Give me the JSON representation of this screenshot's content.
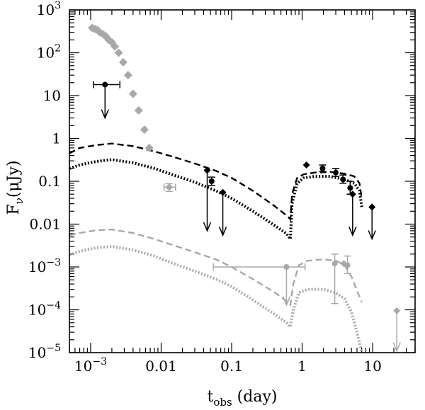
{
  "chart_data": {
    "type": "scatter",
    "title": "",
    "xlabel": {
      "main": "t",
      "sub": "obs",
      "rest": " (day)"
    },
    "ylabel": {
      "main": "F",
      "sub": "ν",
      "rest": "(μJy)"
    },
    "xscale": "log",
    "yscale": "log",
    "xlim": [
      0.0005,
      40
    ],
    "ylim": [
      1e-05,
      1000
    ],
    "xticks": [
      {
        "value": 0.001,
        "label": "10",
        "exp": "−3"
      },
      {
        "value": 0.01,
        "label": "0.01",
        "exp": ""
      },
      {
        "value": 0.1,
        "label": "0.1",
        "exp": ""
      },
      {
        "value": 1,
        "label": "1",
        "exp": ""
      },
      {
        "value": 10,
        "label": "10",
        "exp": ""
      }
    ],
    "yticks": [
      {
        "value": 1e-05,
        "label": "10",
        "exp": "−5"
      },
      {
        "value": 0.0001,
        "label": "10",
        "exp": "−4"
      },
      {
        "value": 0.001,
        "label": "10",
        "exp": "−3"
      },
      {
        "value": 0.01,
        "label": "0.01",
        "exp": ""
      },
      {
        "value": 0.1,
        "label": "0.1",
        "exp": ""
      },
      {
        "value": 1,
        "label": "1",
        "exp": ""
      },
      {
        "value": 10,
        "label": "10",
        "exp": ""
      },
      {
        "value": 100,
        "label": "10",
        "exp": "2"
      },
      {
        "value": 1000,
        "label": "10",
        "exp": "3"
      }
    ],
    "colors": {
      "black": "#000000",
      "gray": "#a8a8a8"
    },
    "series": [
      {
        "name": "black-dashed-model",
        "kind": "line",
        "color": "#000000",
        "dash": "dashed",
        "points": [
          [
            0.0005,
            0.45
          ],
          [
            0.0007,
            0.6
          ],
          [
            0.0012,
            0.7
          ],
          [
            0.002,
            0.76
          ],
          [
            0.004,
            0.66
          ],
          [
            0.008,
            0.5
          ],
          [
            0.015,
            0.37
          ],
          [
            0.03,
            0.26
          ],
          [
            0.06,
            0.175
          ],
          [
            0.1,
            0.12
          ],
          [
            0.2,
            0.06
          ],
          [
            0.4,
            0.027
          ],
          [
            0.6,
            0.016
          ],
          [
            0.68,
            0.013
          ],
          [
            0.72,
            0.05
          ],
          [
            0.85,
            0.12
          ],
          [
            1.05,
            0.145
          ],
          [
            1.5,
            0.16
          ],
          [
            2.5,
            0.165
          ],
          [
            4,
            0.15
          ],
          [
            5.5,
            0.13
          ],
          [
            6.5,
            0.09
          ],
          [
            7,
            0.04
          ]
        ]
      },
      {
        "name": "black-dotted-model",
        "kind": "line",
        "color": "#000000",
        "dash": "dotted",
        "points": [
          [
            0.0005,
            0.2
          ],
          [
            0.0007,
            0.24
          ],
          [
            0.0012,
            0.29
          ],
          [
            0.002,
            0.32
          ],
          [
            0.004,
            0.27
          ],
          [
            0.008,
            0.2
          ],
          [
            0.015,
            0.14
          ],
          [
            0.03,
            0.095
          ],
          [
            0.06,
            0.06
          ],
          [
            0.1,
            0.04
          ],
          [
            0.2,
            0.02
          ],
          [
            0.4,
            0.0095
          ],
          [
            0.6,
            0.006
          ],
          [
            0.68,
            0.0045
          ],
          [
            0.72,
            0.03
          ],
          [
            0.85,
            0.09
          ],
          [
            1.05,
            0.12
          ],
          [
            1.5,
            0.13
          ],
          [
            2.5,
            0.13
          ],
          [
            4,
            0.11
          ],
          [
            5.5,
            0.09
          ],
          [
            6.5,
            0.06
          ],
          [
            7,
            0.025
          ]
        ]
      },
      {
        "name": "gray-dashed-model",
        "kind": "line",
        "color": "#a8a8a8",
        "dash": "dashed",
        "points": [
          [
            0.0005,
            0.0055
          ],
          [
            0.0007,
            0.0062
          ],
          [
            0.0012,
            0.0072
          ],
          [
            0.002,
            0.0075
          ],
          [
            0.004,
            0.0062
          ],
          [
            0.008,
            0.0045
          ],
          [
            0.015,
            0.0032
          ],
          [
            0.03,
            0.0022
          ],
          [
            0.06,
            0.0015
          ],
          [
            0.1,
            0.001
          ],
          [
            0.2,
            0.00052
          ],
          [
            0.4,
            0.00026
          ],
          [
            0.6,
            0.00016
          ],
          [
            0.68,
            0.00013
          ],
          [
            0.75,
            0.0004
          ],
          [
            0.9,
            0.0011
          ],
          [
            1.2,
            0.0014
          ],
          [
            2,
            0.0015
          ],
          [
            3,
            0.0014
          ],
          [
            4,
            0.0011
          ],
          [
            5,
            0.0006
          ],
          [
            6,
            0.00028
          ],
          [
            7,
            0.00015
          ]
        ]
      },
      {
        "name": "gray-dotted-model",
        "kind": "line",
        "color": "#a8a8a8",
        "dash": "dotted",
        "points": [
          [
            0.0005,
            0.0019
          ],
          [
            0.0007,
            0.0023
          ],
          [
            0.0012,
            0.0028
          ],
          [
            0.002,
            0.003
          ],
          [
            0.004,
            0.0025
          ],
          [
            0.008,
            0.0018
          ],
          [
            0.015,
            0.0012
          ],
          [
            0.03,
            0.0008
          ],
          [
            0.06,
            0.00052
          ],
          [
            0.1,
            0.00035
          ],
          [
            0.2,
            0.00017
          ],
          [
            0.4,
            8e-05
          ],
          [
            0.6,
            5e-05
          ],
          [
            0.68,
            4e-05
          ],
          [
            0.75,
            0.0001
          ],
          [
            0.9,
            0.00025
          ],
          [
            1.2,
            0.0003
          ],
          [
            2,
            0.0003
          ],
          [
            3,
            0.00025
          ],
          [
            4,
            0.00018
          ],
          [
            5,
            9e-05
          ],
          [
            6,
            3e-05
          ],
          [
            7,
            1e-05
          ]
        ]
      },
      {
        "name": "gray-diamonds-early",
        "kind": "points",
        "color": "#a8a8a8",
        "marker": "diamond",
        "size": 6,
        "points": [
          [
            0.00105,
            380
          ],
          [
            0.00115,
            360
          ],
          [
            0.00125,
            340
          ],
          [
            0.00135,
            300
          ],
          [
            0.0015,
            270
          ],
          [
            0.00165,
            240
          ],
          [
            0.0018,
            200
          ],
          [
            0.002,
            175
          ],
          [
            0.0022,
            140
          ],
          [
            0.0025,
            100
          ],
          [
            0.0029,
            60
          ],
          [
            0.0034,
            30
          ],
          [
            0.004,
            11
          ],
          [
            0.0048,
            4.5
          ],
          [
            0.0058,
            1.6
          ],
          [
            0.0068,
            0.6
          ]
        ]
      },
      {
        "name": "black-detections",
        "kind": "points",
        "color": "#000000",
        "marker": "circle",
        "size": 4,
        "points": [
          {
            "x": 0.0016,
            "y": 18,
            "xerr": [
              0.0011,
              0.0026
            ]
          },
          {
            "x": 0.052,
            "y": 0.1,
            "yerr": [
              0.08,
              0.125
            ]
          },
          {
            "x": 1.95,
            "y": 0.2,
            "yerr": [
              0.17,
              0.24
            ]
          },
          {
            "x": 3.0,
            "y": 0.16,
            "yerr": [
              0.13,
              0.2
            ]
          },
          {
            "x": 3.8,
            "y": 0.11,
            "yerr": [
              0.09,
              0.14
            ]
          },
          {
            "x": 4.8,
            "y": 0.07,
            "yerr": [
              0.05,
              0.1
            ]
          }
        ]
      },
      {
        "name": "black-diamonds",
        "kind": "points",
        "color": "#000000",
        "marker": "diamond",
        "size": 5,
        "points": [
          [
            0.045,
            0.18
          ],
          [
            0.075,
            0.055
          ],
          [
            1.15,
            0.24
          ],
          [
            5.2,
            0.05
          ],
          [
            9.8,
            0.025
          ]
        ]
      },
      {
        "name": "black-upper-limits",
        "kind": "arrows",
        "color": "#000000",
        "points": [
          [
            0.0016,
            18,
            3.0
          ],
          [
            0.045,
            0.18,
            0.007
          ],
          [
            0.075,
            0.055,
            0.0055
          ],
          [
            5.2,
            0.05,
            0.0055
          ],
          [
            9.8,
            0.025,
            0.0045
          ]
        ]
      },
      {
        "name": "gray-detections",
        "kind": "points",
        "color": "#a8a8a8",
        "marker": "circle",
        "size": 4,
        "points": [
          {
            "x": 0.013,
            "y": 0.073,
            "xerr": [
              0.011,
              0.016
            ],
            "yerr": [
              0.058,
              0.088
            ]
          },
          {
            "x": 0.6,
            "y": 0.001,
            "xerr": [
              0.055,
              1.1
            ]
          },
          {
            "x": 2.9,
            "y": 0.0012,
            "yerr": [
              0.00014,
              0.002
            ]
          },
          {
            "x": 4.4,
            "y": 0.0011,
            "yerr": [
              0.0007,
              0.0018
            ]
          }
        ]
      },
      {
        "name": "gray-diamonds-late",
        "kind": "points",
        "color": "#a8a8a8",
        "marker": "diamond",
        "size": 5,
        "points": [
          [
            3.9,
            0.0012
          ],
          [
            22,
            9.5e-05
          ]
        ]
      },
      {
        "name": "gray-upper-limits",
        "kind": "arrows",
        "color": "#a8a8a8",
        "points": [
          [
            0.6,
            0.001,
            0.00013
          ],
          [
            22,
            9.5e-05,
            1.1e-05
          ]
        ]
      }
    ]
  }
}
